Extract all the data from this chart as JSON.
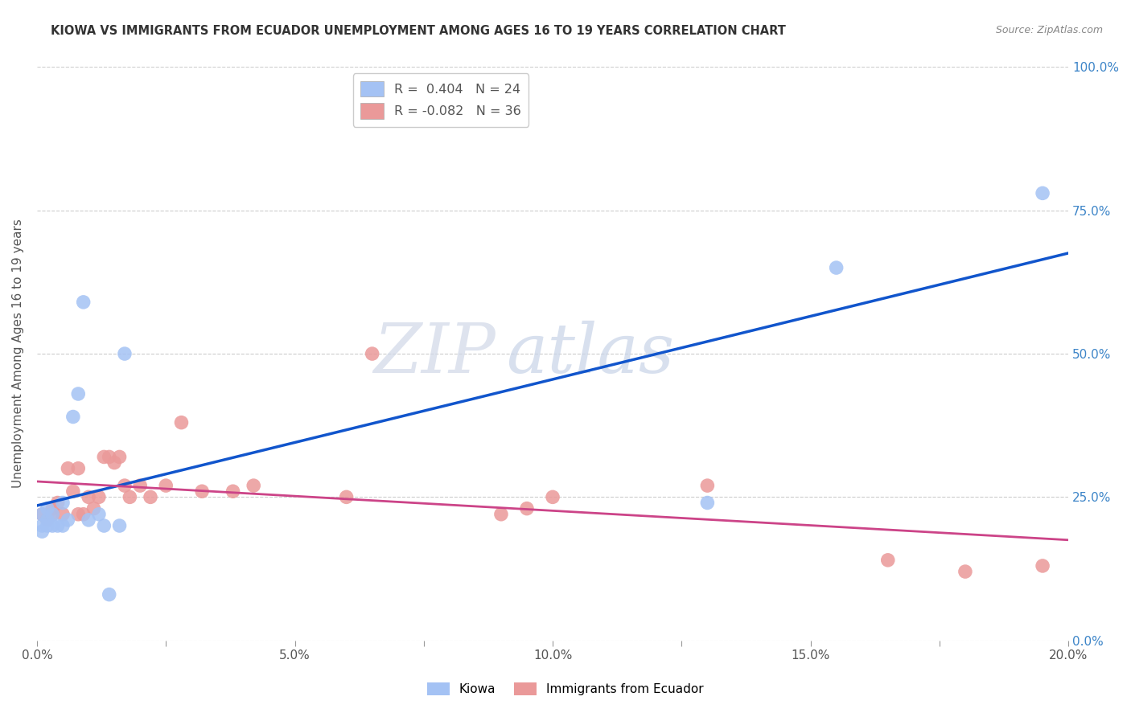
{
  "title": "KIOWA VS IMMIGRANTS FROM ECUADOR UNEMPLOYMENT AMONG AGES 16 TO 19 YEARS CORRELATION CHART",
  "source": "Source: ZipAtlas.com",
  "ylabel_label": "Unemployment Among Ages 16 to 19 years",
  "legend_labels_bottom": [
    "Kiowa",
    "Immigrants from Ecuador"
  ],
  "kiowa_x": [
    0.001,
    0.001,
    0.001,
    0.002,
    0.002,
    0.002,
    0.003,
    0.003,
    0.004,
    0.005,
    0.005,
    0.006,
    0.007,
    0.008,
    0.009,
    0.01,
    0.012,
    0.013,
    0.014,
    0.016,
    0.017,
    0.13,
    0.155,
    0.195
  ],
  "kiowa_y": [
    0.2,
    0.22,
    0.19,
    0.21,
    0.2,
    0.23,
    0.2,
    0.22,
    0.2,
    0.2,
    0.24,
    0.21,
    0.39,
    0.43,
    0.59,
    0.21,
    0.22,
    0.2,
    0.08,
    0.2,
    0.5,
    0.24,
    0.65,
    0.78
  ],
  "ecuador_x": [
    0.001,
    0.002,
    0.003,
    0.003,
    0.004,
    0.005,
    0.006,
    0.007,
    0.008,
    0.008,
    0.009,
    0.01,
    0.011,
    0.012,
    0.013,
    0.014,
    0.015,
    0.016,
    0.017,
    0.018,
    0.02,
    0.022,
    0.025,
    0.028,
    0.032,
    0.038,
    0.042,
    0.06,
    0.065,
    0.09,
    0.095,
    0.1,
    0.13,
    0.165,
    0.18,
    0.195
  ],
  "ecuador_y": [
    0.22,
    0.21,
    0.23,
    0.22,
    0.24,
    0.22,
    0.3,
    0.26,
    0.22,
    0.3,
    0.22,
    0.25,
    0.23,
    0.25,
    0.32,
    0.32,
    0.31,
    0.32,
    0.27,
    0.25,
    0.27,
    0.25,
    0.27,
    0.38,
    0.26,
    0.26,
    0.27,
    0.25,
    0.5,
    0.22,
    0.23,
    0.25,
    0.27,
    0.14,
    0.12,
    0.13
  ],
  "kiowa_color": "#a4c2f4",
  "ecuador_color": "#ea9999",
  "kiowa_line_color": "#1155cc",
  "ecuador_line_color": "#cc4488",
  "background_color": "#ffffff",
  "xlim": [
    0.0,
    0.2
  ],
  "ylim": [
    0.0,
    1.0
  ]
}
